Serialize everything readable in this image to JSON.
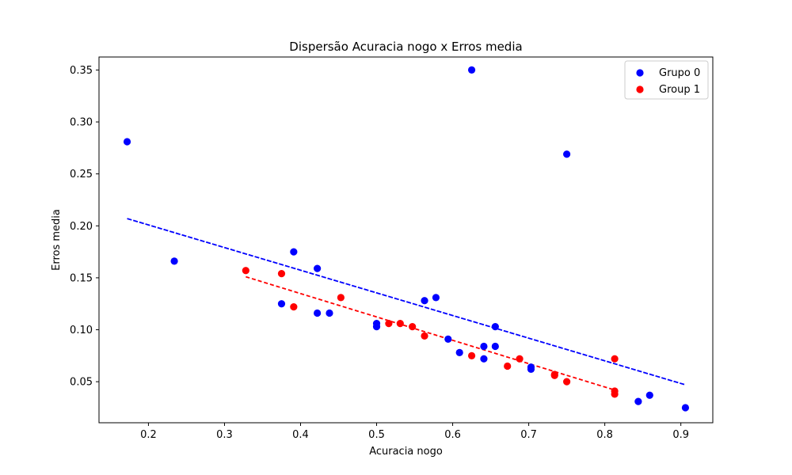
{
  "chart_data": {
    "type": "scatter",
    "title": "Dispersão Acuracia nogo x Erros media",
    "xlabel": "Acuracia nogo",
    "ylabel": "Erros media",
    "xlim": [
      0.135,
      0.942
    ],
    "ylim": [
      0.0105,
      0.3625
    ],
    "xticks": [
      "0.2",
      "0.3",
      "0.4",
      "0.5",
      "0.6",
      "0.7",
      "0.8",
      "0.9"
    ],
    "yticks": [
      "0.05",
      "0.10",
      "0.15",
      "0.20",
      "0.25",
      "0.30",
      "0.35"
    ],
    "grid": false,
    "legend_position": "top-right",
    "series": [
      {
        "name": "Grupo 0",
        "color": "#0000ff",
        "points": [
          [
            0.172,
            0.281
          ],
          [
            0.234,
            0.166
          ],
          [
            0.375,
            0.125
          ],
          [
            0.391,
            0.175
          ],
          [
            0.422,
            0.116
          ],
          [
            0.422,
            0.159
          ],
          [
            0.438,
            0.116
          ],
          [
            0.5,
            0.103
          ],
          [
            0.5,
            0.106
          ],
          [
            0.563,
            0.128
          ],
          [
            0.578,
            0.131
          ],
          [
            0.594,
            0.091
          ],
          [
            0.609,
            0.078
          ],
          [
            0.625,
            0.35
          ],
          [
            0.641,
            0.072
          ],
          [
            0.641,
            0.084
          ],
          [
            0.656,
            0.084
          ],
          [
            0.656,
            0.103
          ],
          [
            0.703,
            0.062
          ],
          [
            0.703,
            0.064
          ],
          [
            0.75,
            0.269
          ],
          [
            0.844,
            0.031
          ],
          [
            0.859,
            0.037
          ],
          [
            0.906,
            0.025
          ]
        ],
        "trend": {
          "style": "dashed",
          "x": [
            0.172,
            0.906
          ],
          "y": [
            0.207,
            0.047
          ]
        }
      },
      {
        "name": "Group 1",
        "color": "#ff0000",
        "points": [
          [
            0.328,
            0.157
          ],
          [
            0.375,
            0.154
          ],
          [
            0.391,
            0.122
          ],
          [
            0.453,
            0.131
          ],
          [
            0.516,
            0.106
          ],
          [
            0.531,
            0.106
          ],
          [
            0.547,
            0.103
          ],
          [
            0.563,
            0.094
          ],
          [
            0.625,
            0.075
          ],
          [
            0.672,
            0.065
          ],
          [
            0.688,
            0.072
          ],
          [
            0.734,
            0.056
          ],
          [
            0.734,
            0.057
          ],
          [
            0.75,
            0.05
          ],
          [
            0.813,
            0.072
          ],
          [
            0.813,
            0.038
          ],
          [
            0.813,
            0.041
          ]
        ],
        "trend": {
          "style": "dashed",
          "x": [
            0.328,
            0.813
          ],
          "y": [
            0.151,
            0.042
          ]
        }
      }
    ]
  }
}
